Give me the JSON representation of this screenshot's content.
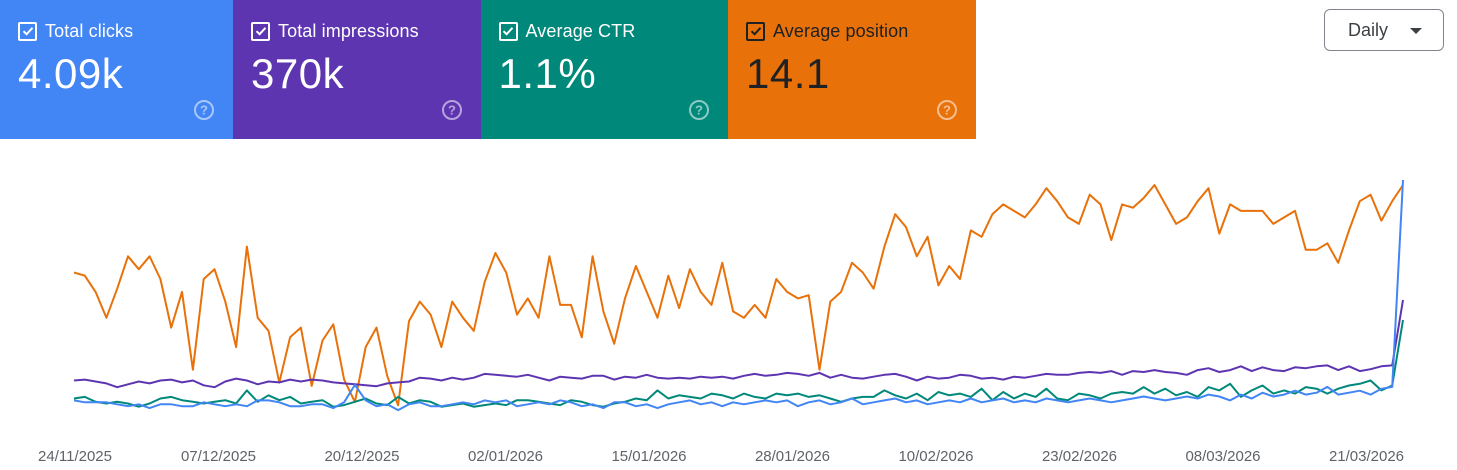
{
  "metric_cards": [
    {
      "label": "Total clicks",
      "value": "4.09k",
      "color": "#4285f4",
      "text_color": "#ffffff",
      "help_icon": "help-circle-icon"
    },
    {
      "label": "Total impressions",
      "value": "370k",
      "color": "#5e35b1",
      "text_color": "#ffffff",
      "help_icon": "help-circle-icon"
    },
    {
      "label": "Average CTR",
      "value": "1.1%",
      "color": "#00897b",
      "text_color": "#ffffff",
      "help_icon": "help-circle-icon"
    },
    {
      "label": "Average position",
      "value": "14.1",
      "color": "#e8710a",
      "text_color": "#202124",
      "help_icon": "help-circle-icon"
    }
  ],
  "granularity_dropdown": {
    "selected": "Daily",
    "icon": "caret-down-icon"
  },
  "chart_data": {
    "type": "line",
    "x_tick_labels": [
      "24/11/2025",
      "07/12/2025",
      "20/12/2025",
      "02/01/2026",
      "15/01/2026",
      "28/01/2026",
      "10/02/2026",
      "23/02/2026",
      "08/03/2026",
      "21/03/2026"
    ],
    "x_range": [
      "2025-11-24",
      "2026-03-25"
    ],
    "y_axis_visible": false,
    "grid": false,
    "legend": "none (metric cards act as legend)",
    "note": "Each series uses its own independent scale; values are relative levels (0-100) read from the plot.",
    "series": [
      {
        "name": "Average position",
        "color": "#e8710a",
        "values": [
          48,
          47,
          42,
          34,
          43,
          53,
          49,
          53,
          46,
          31,
          42,
          18,
          46,
          49,
          39,
          25,
          56,
          34,
          30,
          14,
          28,
          31,
          13,
          27,
          32,
          15,
          8,
          25,
          31,
          16,
          7,
          33,
          39,
          35,
          25,
          39,
          34,
          30,
          45,
          54,
          48,
          35,
          40,
          34,
          53,
          38,
          38,
          28,
          53,
          36,
          26,
          40,
          50,
          42,
          34,
          47,
          37,
          49,
          42,
          38,
          51,
          36,
          34,
          38,
          34,
          46,
          42,
          40,
          41,
          18,
          39,
          42,
          51,
          48,
          43,
          56,
          66,
          62,
          53,
          59,
          44,
          50,
          46,
          61,
          59,
          66,
          69,
          67,
          65,
          69,
          74,
          70,
          65,
          63,
          72,
          69,
          58,
          69,
          68,
          71,
          75,
          69,
          63,
          65,
          70,
          74,
          60,
          69,
          67,
          67,
          67,
          63,
          65,
          67,
          55,
          55,
          57,
          51,
          61,
          70,
          72,
          64,
          70,
          75
        ]
      },
      {
        "name": "Total impressions",
        "color": "#5e35b1",
        "values": [
          10,
          11,
          9,
          7,
          3,
          6,
          9,
          7,
          10,
          11,
          8,
          10,
          5,
          3,
          9,
          12,
          10,
          6,
          9,
          8,
          11,
          9,
          11,
          10,
          8,
          7,
          6,
          5,
          4,
          7,
          8,
          9,
          13,
          12,
          10,
          13,
          11,
          13,
          17,
          16,
          15,
          14,
          16,
          13,
          10,
          14,
          13,
          12,
          15,
          15,
          11,
          14,
          13,
          16,
          13,
          12,
          13,
          12,
          14,
          13,
          14,
          12,
          15,
          17,
          15,
          16,
          18,
          17,
          15,
          18,
          13,
          16,
          13,
          12,
          14,
          16,
          17,
          14,
          10,
          14,
          12,
          13,
          16,
          15,
          12,
          13,
          11,
          14,
          13,
          15,
          17,
          16,
          16,
          18,
          19,
          18,
          20,
          16,
          20,
          19,
          21,
          19,
          18,
          16,
          21,
          23,
          19,
          21,
          25,
          20,
          24,
          21,
          20,
          24,
          23,
          25,
          26,
          21,
          25,
          20,
          22,
          25,
          26,
          95
        ]
      },
      {
        "name": "Average CTR",
        "color": "#00897b",
        "values": [
          7,
          8,
          5,
          4,
          5,
          4,
          2,
          4,
          7,
          8,
          6,
          5,
          4,
          5,
          6,
          4,
          12,
          5,
          9,
          6,
          8,
          4,
          5,
          6,
          2,
          3,
          5,
          7,
          4,
          3,
          8,
          4,
          6,
          5,
          2,
          3,
          4,
          2,
          3,
          4,
          3,
          6,
          6,
          5,
          4,
          3,
          6,
          5,
          3,
          2,
          4,
          5,
          7,
          6,
          12,
          7,
          9,
          8,
          7,
          10,
          9,
          7,
          10,
          8,
          7,
          10,
          9,
          10,
          8,
          9,
          7,
          5,
          7,
          8,
          8,
          12,
          9,
          7,
          10,
          6,
          11,
          9,
          10,
          8,
          13,
          6,
          11,
          7,
          10,
          8,
          13,
          7,
          6,
          10,
          9,
          7,
          10,
          11,
          10,
          14,
          10,
          13,
          9,
          11,
          8,
          14,
          12,
          16,
          8,
          12,
          15,
          10,
          12,
          10,
          14,
          13,
          10,
          13,
          15,
          16,
          18,
          12,
          15,
          55
        ]
      },
      {
        "name": "Total clicks",
        "color": "#4285f4",
        "values": [
          6,
          5,
          5,
          5,
          4,
          3,
          4,
          2,
          4,
          4,
          3,
          3,
          5,
          4,
          3,
          4,
          3,
          6,
          6,
          5,
          3,
          3,
          4,
          4,
          2,
          5,
          14,
          6,
          3,
          4,
          1,
          4,
          5,
          3,
          3,
          4,
          5,
          4,
          6,
          5,
          6,
          3,
          4,
          5,
          4,
          6,
          5,
          3,
          4,
          2,
          5,
          5,
          3,
          4,
          2,
          4,
          5,
          6,
          4,
          5,
          3,
          5,
          4,
          5,
          6,
          5,
          6,
          3,
          5,
          6,
          4,
          5,
          7,
          4,
          5,
          6,
          7,
          5,
          6,
          4,
          5,
          6,
          5,
          7,
          5,
          6,
          7,
          5,
          6,
          5,
          7,
          6,
          5,
          6,
          7,
          6,
          5,
          6,
          7,
          8,
          7,
          6,
          7,
          8,
          7,
          9,
          8,
          6,
          9,
          7,
          10,
          8,
          9,
          11,
          9,
          10,
          13,
          9,
          10,
          11,
          9,
          12,
          13,
          120
        ]
      }
    ]
  }
}
